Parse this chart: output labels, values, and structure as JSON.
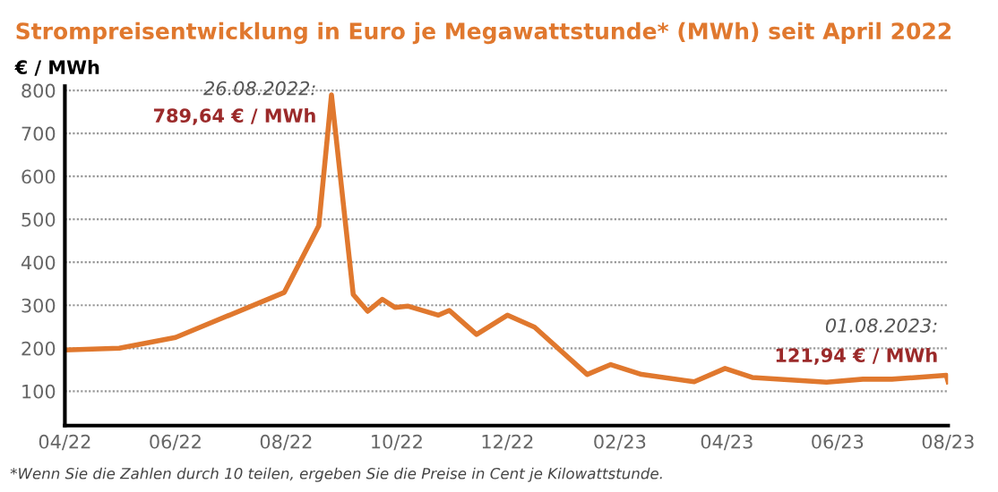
{
  "chart_data": {
    "type": "line",
    "title": "Strompreisentwicklung in Euro je Megawattstunde* (MWh) seit April 2022",
    "ylabel": "€ / MWh",
    "x": [
      "2022-04-01",
      "2022-05-01",
      "2022-06-01",
      "2022-07-31",
      "2022-08-19",
      "2022-08-26",
      "2022-09-07",
      "2022-09-15",
      "2022-09-23",
      "2022-09-30",
      "2022-10-07",
      "2022-10-24",
      "2022-10-30",
      "2022-11-14",
      "2022-12-01",
      "2022-12-16",
      "2023-01-14",
      "2023-01-27",
      "2023-02-13",
      "2023-03-14",
      "2023-03-31",
      "2023-04-15",
      "2023-05-26",
      "2023-06-15",
      "2023-07-01",
      "2023-07-31",
      "2023-08-01"
    ],
    "series": [
      {
        "color": "#e0782e",
        "values": [
          196,
          200,
          225,
          330,
          485,
          789.64,
          325,
          286,
          314,
          295,
          298,
          277,
          288,
          232,
          277,
          249,
          139,
          162,
          139,
          122,
          153,
          132,
          121,
          128,
          128,
          137,
          121.94
        ]
      }
    ],
    "xlim": [
      "2022-04-01",
      "2023-08-01"
    ],
    "xticks": [
      {
        "value": "2022-04-01",
        "label": "04/22"
      },
      {
        "value": "2022-06-01",
        "label": "06/22"
      },
      {
        "value": "2022-08-01",
        "label": "08/22"
      },
      {
        "value": "2022-10-01",
        "label": "10/22"
      },
      {
        "value": "2022-12-01",
        "label": "12/22"
      },
      {
        "value": "2023-02-01",
        "label": "02/23"
      },
      {
        "value": "2023-04-01",
        "label": "04/23"
      },
      {
        "value": "2023-06-01",
        "label": "06/23"
      },
      {
        "value": "2023-08-01",
        "label": "08/23"
      }
    ],
    "ylim": [
      20,
      810
    ],
    "yticks": [
      100,
      200,
      300,
      400,
      500,
      600,
      700,
      800
    ],
    "grid": "y",
    "legend": false,
    "annotations": [
      {
        "text": "26.08.2022:",
        "x": "2022-08-26",
        "y": 789.64
      },
      {
        "text": "789,64 € / MWh",
        "x": "2022-08-26",
        "y": 789.64
      },
      {
        "text": "01.08.2023:",
        "x": "2023-08-01",
        "y": 121.94
      },
      {
        "text": "121,94 € / MWh",
        "x": "2023-08-01",
        "y": 121.94
      },
      "*Wenn Sie die Zahlen durch 10 teilen, ergeben Sie die Preise in Cent je Kilowattstunde."
    ]
  }
}
